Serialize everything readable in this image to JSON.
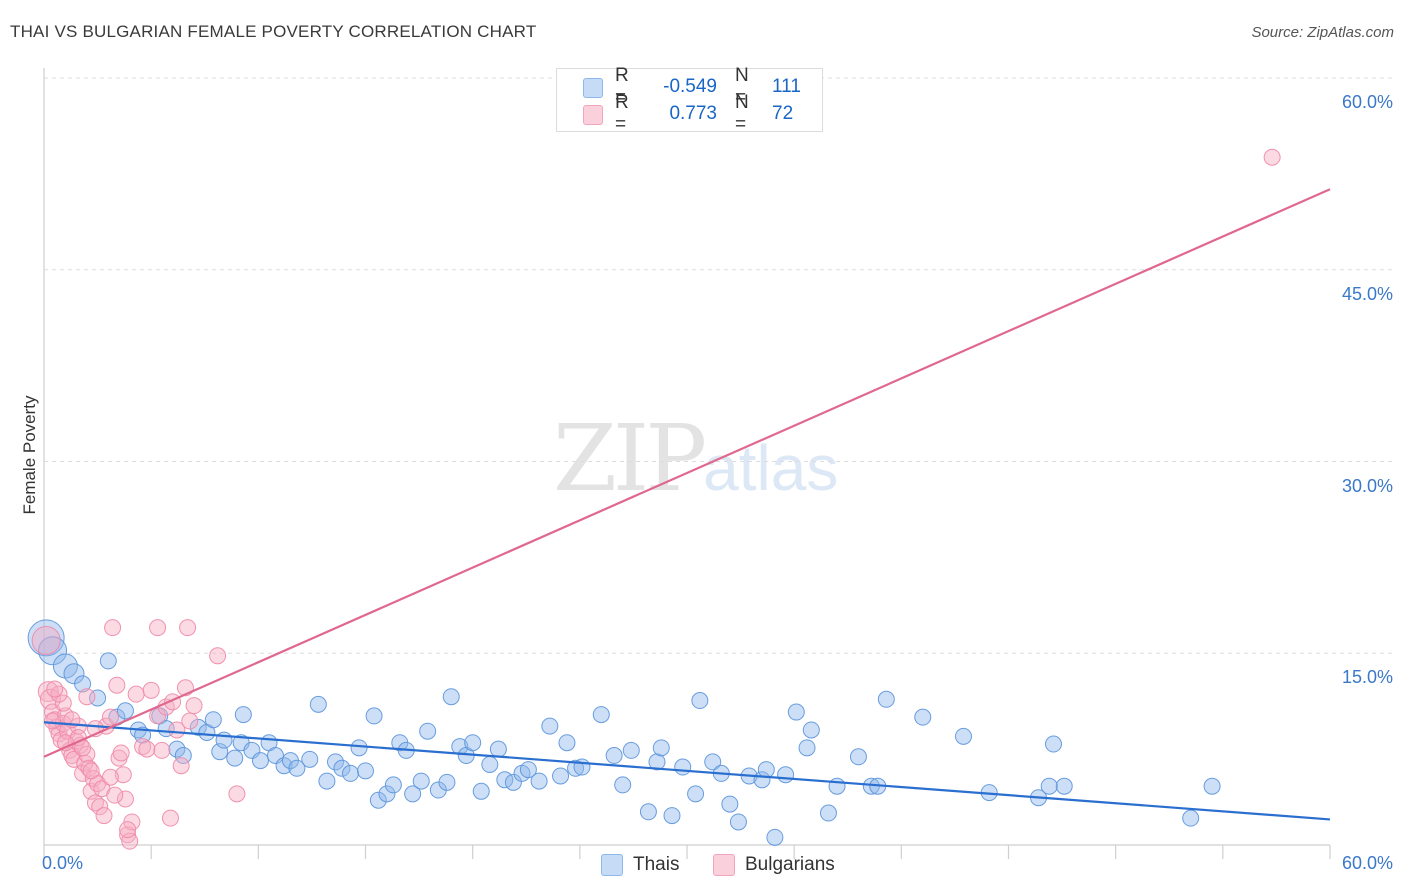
{
  "header": {
    "title": "THAI VS BULGARIAN FEMALE POVERTY CORRELATION CHART",
    "source": "Source: ZipAtlas.com"
  },
  "watermark": {
    "zip": "ZIP",
    "atlas": "atlas"
  },
  "legend": {
    "rows": [
      {
        "r_label": "R =",
        "r_value": "-0.549",
        "n_label": "N =",
        "n_value": "111",
        "color": "#a8c8f0"
      },
      {
        "r_label": "R =",
        "r_value": "0.773",
        "n_label": "N =",
        "n_value": "72",
        "color": "#f7b8cb"
      }
    ]
  },
  "bottom_legend": [
    {
      "label": "Thais",
      "color": "#a8c8f0"
    },
    {
      "label": "Bulgarians",
      "color": "#f7b8cb"
    }
  ],
  "colors": {
    "thai_fill": "#8db8ec",
    "thai_stroke": "#5b93dc",
    "thai_line": "#2a6fd0",
    "bulg_fill": "#f7aec4",
    "bulg_stroke": "#ee88a8",
    "bulg_line": "#e0688f",
    "grid": "#dddddd",
    "tick_text": "#3a78c9"
  },
  "chart_data": {
    "type": "scatter",
    "title": "THAI VS BULGARIAN FEMALE POVERTY CORRELATION CHART",
    "xlabel": "",
    "ylabel": "Female Poverty",
    "xlim": [
      0,
      60
    ],
    "ylim": [
      0,
      60
    ],
    "x_tick_labels": [
      "0.0%",
      "60.0%"
    ],
    "y_ticks": [
      15,
      30,
      45,
      60
    ],
    "y_tick_labels": [
      "15.0%",
      "30.0%",
      "45.0%",
      "60.0%"
    ],
    "grid": true,
    "series": [
      {
        "name": "Thais",
        "r": -0.549,
        "n": 111,
        "trend": {
          "x0": 0,
          "y0": 9.6,
          "x1": 60,
          "y1": 2.0
        },
        "points": [
          [
            0.1,
            16.2,
            18
          ],
          [
            0.4,
            15.2,
            14
          ],
          [
            1.0,
            14.0,
            12
          ],
          [
            1.4,
            13.4,
            10
          ],
          [
            1.8,
            12.6,
            8
          ],
          [
            3.0,
            14.4,
            8
          ],
          [
            2.5,
            11.5,
            8
          ],
          [
            3.4,
            10.0,
            8
          ],
          [
            3.8,
            10.5,
            8
          ],
          [
            4.4,
            9.0,
            8
          ],
          [
            4.6,
            8.6,
            8
          ],
          [
            5.4,
            10.1,
            8
          ],
          [
            5.7,
            9.1,
            8
          ],
          [
            6.2,
            7.5,
            8
          ],
          [
            6.5,
            7.0,
            8
          ],
          [
            7.2,
            9.2,
            8
          ],
          [
            7.6,
            8.8,
            8
          ],
          [
            7.9,
            9.8,
            8
          ],
          [
            8.2,
            7.3,
            8
          ],
          [
            8.4,
            8.2,
            8
          ],
          [
            8.9,
            6.8,
            8
          ],
          [
            9.2,
            8.0,
            8
          ],
          [
            9.3,
            10.2,
            8
          ],
          [
            9.7,
            7.4,
            8
          ],
          [
            10.1,
            6.6,
            8
          ],
          [
            10.5,
            8.0,
            8
          ],
          [
            10.8,
            7.0,
            8
          ],
          [
            11.2,
            6.2,
            8
          ],
          [
            11.5,
            6.6,
            8
          ],
          [
            11.8,
            6.0,
            8
          ],
          [
            12.4,
            6.7,
            8
          ],
          [
            12.8,
            11.0,
            8
          ],
          [
            13.2,
            5.0,
            8
          ],
          [
            13.6,
            6.5,
            8
          ],
          [
            13.9,
            6.0,
            8
          ],
          [
            14.3,
            5.6,
            8
          ],
          [
            14.7,
            7.6,
            8
          ],
          [
            15.0,
            5.8,
            8
          ],
          [
            15.4,
            10.1,
            8
          ],
          [
            15.6,
            3.5,
            8
          ],
          [
            16.0,
            4.0,
            8
          ],
          [
            16.3,
            4.7,
            8
          ],
          [
            16.6,
            8.0,
            8
          ],
          [
            16.9,
            7.4,
            8
          ],
          [
            17.2,
            4.0,
            8
          ],
          [
            17.6,
            5.0,
            8
          ],
          [
            17.9,
            8.9,
            8
          ],
          [
            18.4,
            4.3,
            8
          ],
          [
            18.8,
            4.9,
            8
          ],
          [
            19.0,
            11.6,
            8
          ],
          [
            19.4,
            7.7,
            8
          ],
          [
            19.7,
            7.0,
            8
          ],
          [
            20.0,
            8.0,
            8
          ],
          [
            20.4,
            4.2,
            8
          ],
          [
            20.8,
            6.3,
            8
          ],
          [
            21.2,
            7.5,
            8
          ],
          [
            21.5,
            5.1,
            8
          ],
          [
            21.9,
            4.9,
            8
          ],
          [
            22.3,
            5.6,
            8
          ],
          [
            22.6,
            5.9,
            8
          ],
          [
            23.1,
            5.0,
            8
          ],
          [
            23.6,
            9.3,
            8
          ],
          [
            24.1,
            5.4,
            8
          ],
          [
            24.4,
            8.0,
            8
          ],
          [
            24.8,
            6.0,
            8
          ],
          [
            25.1,
            6.1,
            8
          ],
          [
            26.0,
            10.2,
            8
          ],
          [
            26.6,
            7.0,
            8
          ],
          [
            27.0,
            4.7,
            8
          ],
          [
            27.4,
            7.4,
            8
          ],
          [
            28.2,
            2.6,
            8
          ],
          [
            28.6,
            6.5,
            8
          ],
          [
            28.8,
            7.6,
            8
          ],
          [
            29.3,
            2.3,
            8
          ],
          [
            29.8,
            6.1,
            8
          ],
          [
            30.4,
            4.0,
            8
          ],
          [
            30.6,
            11.3,
            8
          ],
          [
            31.2,
            6.5,
            8
          ],
          [
            31.6,
            5.6,
            8
          ],
          [
            32.0,
            3.2,
            8
          ],
          [
            32.4,
            1.8,
            8
          ],
          [
            32.9,
            5.4,
            8
          ],
          [
            33.5,
            5.1,
            8
          ],
          [
            33.7,
            5.9,
            8
          ],
          [
            34.1,
            0.6,
            8
          ],
          [
            34.6,
            5.5,
            8
          ],
          [
            35.1,
            10.4,
            8
          ],
          [
            35.6,
            7.6,
            8
          ],
          [
            35.8,
            9.0,
            8
          ],
          [
            36.6,
            2.5,
            8
          ],
          [
            37.0,
            4.6,
            8
          ],
          [
            38.0,
            6.9,
            8
          ],
          [
            38.6,
            4.6,
            8
          ],
          [
            38.9,
            4.6,
            8
          ],
          [
            39.3,
            11.4,
            8
          ],
          [
            41.0,
            10.0,
            8
          ],
          [
            42.9,
            8.5,
            8
          ],
          [
            44.1,
            4.1,
            8
          ],
          [
            46.4,
            3.7,
            8
          ],
          [
            47.1,
            7.9,
            8
          ],
          [
            47.6,
            4.6,
            8
          ],
          [
            46.9,
            4.6,
            8
          ],
          [
            53.5,
            2.1,
            8
          ],
          [
            54.5,
            4.6,
            8
          ]
        ]
      },
      {
        "name": "Bulgarians",
        "r": 0.773,
        "n": 72,
        "trend": {
          "x0": 0,
          "y0": 6.9,
          "x1": 60,
          "y1": 51.3
        },
        "points": [
          [
            0.1,
            16.0,
            14
          ],
          [
            0.2,
            12.0,
            10
          ],
          [
            0.3,
            11.4,
            10
          ],
          [
            0.4,
            10.4,
            8
          ],
          [
            0.5,
            9.8,
            8
          ],
          [
            0.6,
            9.2,
            8
          ],
          [
            0.7,
            8.7,
            8
          ],
          [
            0.8,
            8.2,
            8
          ],
          [
            0.9,
            9.5,
            8
          ],
          [
            1.0,
            10.1,
            8
          ],
          [
            1.1,
            8.9,
            8
          ],
          [
            1.2,
            7.4,
            8
          ],
          [
            1.3,
            7.0,
            8
          ],
          [
            1.4,
            6.7,
            8
          ],
          [
            1.5,
            8.1,
            8
          ],
          [
            1.6,
            9.3,
            8
          ],
          [
            1.7,
            7.8,
            8
          ],
          [
            1.8,
            5.6,
            8
          ],
          [
            1.9,
            6.4,
            8
          ],
          [
            2.0,
            7.1,
            8
          ],
          [
            2.1,
            6.0,
            8
          ],
          [
            2.2,
            4.2,
            8
          ],
          [
            2.3,
            5.2,
            8
          ],
          [
            2.4,
            3.3,
            8
          ],
          [
            2.5,
            4.8,
            8
          ],
          [
            2.6,
            3.0,
            8
          ],
          [
            2.7,
            4.4,
            8
          ],
          [
            2.8,
            2.3,
            8
          ],
          [
            2.9,
            9.3,
            8
          ],
          [
            3.1,
            10.0,
            8
          ],
          [
            3.4,
            12.5,
            8
          ],
          [
            3.5,
            6.8,
            8
          ],
          [
            3.6,
            7.2,
            8
          ],
          [
            3.7,
            5.5,
            8
          ],
          [
            3.8,
            3.6,
            8
          ],
          [
            3.9,
            0.8,
            8
          ],
          [
            4.0,
            0.3,
            8
          ],
          [
            4.1,
            1.8,
            8
          ],
          [
            4.3,
            11.8,
            8
          ],
          [
            4.6,
            7.7,
            8
          ],
          [
            4.8,
            7.5,
            8
          ],
          [
            5.0,
            12.1,
            8
          ],
          [
            5.3,
            10.1,
            8
          ],
          [
            5.5,
            7.4,
            8
          ],
          [
            5.7,
            10.8,
            8
          ],
          [
            5.9,
            2.1,
            8
          ],
          [
            6.0,
            11.2,
            8
          ],
          [
            6.2,
            9.0,
            8
          ],
          [
            6.4,
            6.2,
            8
          ],
          [
            6.6,
            12.3,
            8
          ],
          [
            6.8,
            9.7,
            8
          ],
          [
            7.0,
            10.9,
            8
          ],
          [
            3.2,
            17.0,
            8
          ],
          [
            5.3,
            17.0,
            8
          ],
          [
            6.7,
            17.0,
            8
          ],
          [
            8.1,
            14.8,
            8
          ],
          [
            9.0,
            4.0,
            8
          ],
          [
            0.9,
            11.1,
            8
          ],
          [
            1.3,
            9.8,
            8
          ],
          [
            1.6,
            8.4,
            8
          ],
          [
            2.2,
            5.8,
            8
          ],
          [
            0.7,
            11.8,
            8
          ],
          [
            0.4,
            9.7,
            8
          ],
          [
            1.8,
            7.6,
            8
          ],
          [
            2.4,
            9.1,
            8
          ],
          [
            3.1,
            5.3,
            8
          ],
          [
            3.3,
            3.9,
            8
          ],
          [
            3.9,
            1.2,
            8
          ],
          [
            2.0,
            11.6,
            8
          ],
          [
            0.5,
            12.2,
            8
          ],
          [
            57.3,
            53.8,
            8
          ],
          [
            1.0,
            8.0,
            8
          ]
        ]
      }
    ]
  }
}
